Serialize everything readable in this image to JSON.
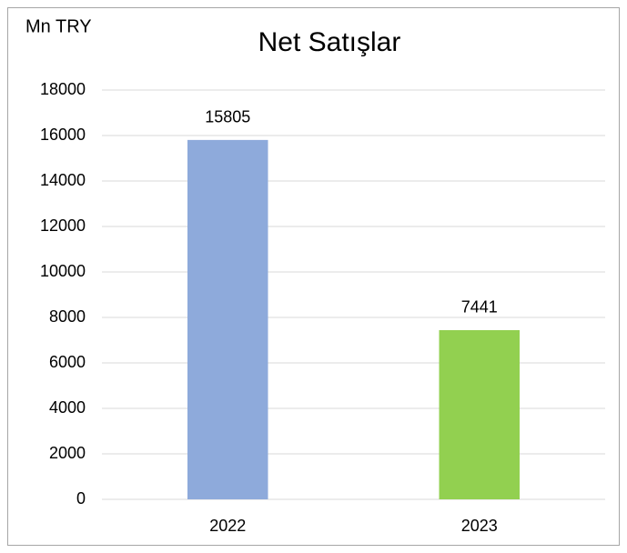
{
  "chart_data": {
    "type": "bar",
    "title": "Net Satışlar",
    "ylabel": "Mn TRY",
    "categories": [
      "2022",
      "2023"
    ],
    "values": [
      15805,
      7441
    ],
    "colors": [
      "#8eaadb",
      "#92d050"
    ],
    "ylim": [
      0,
      18000
    ],
    "yticks": [
      0,
      2000,
      4000,
      6000,
      8000,
      10000,
      12000,
      14000,
      16000,
      18000
    ],
    "grid": true
  }
}
